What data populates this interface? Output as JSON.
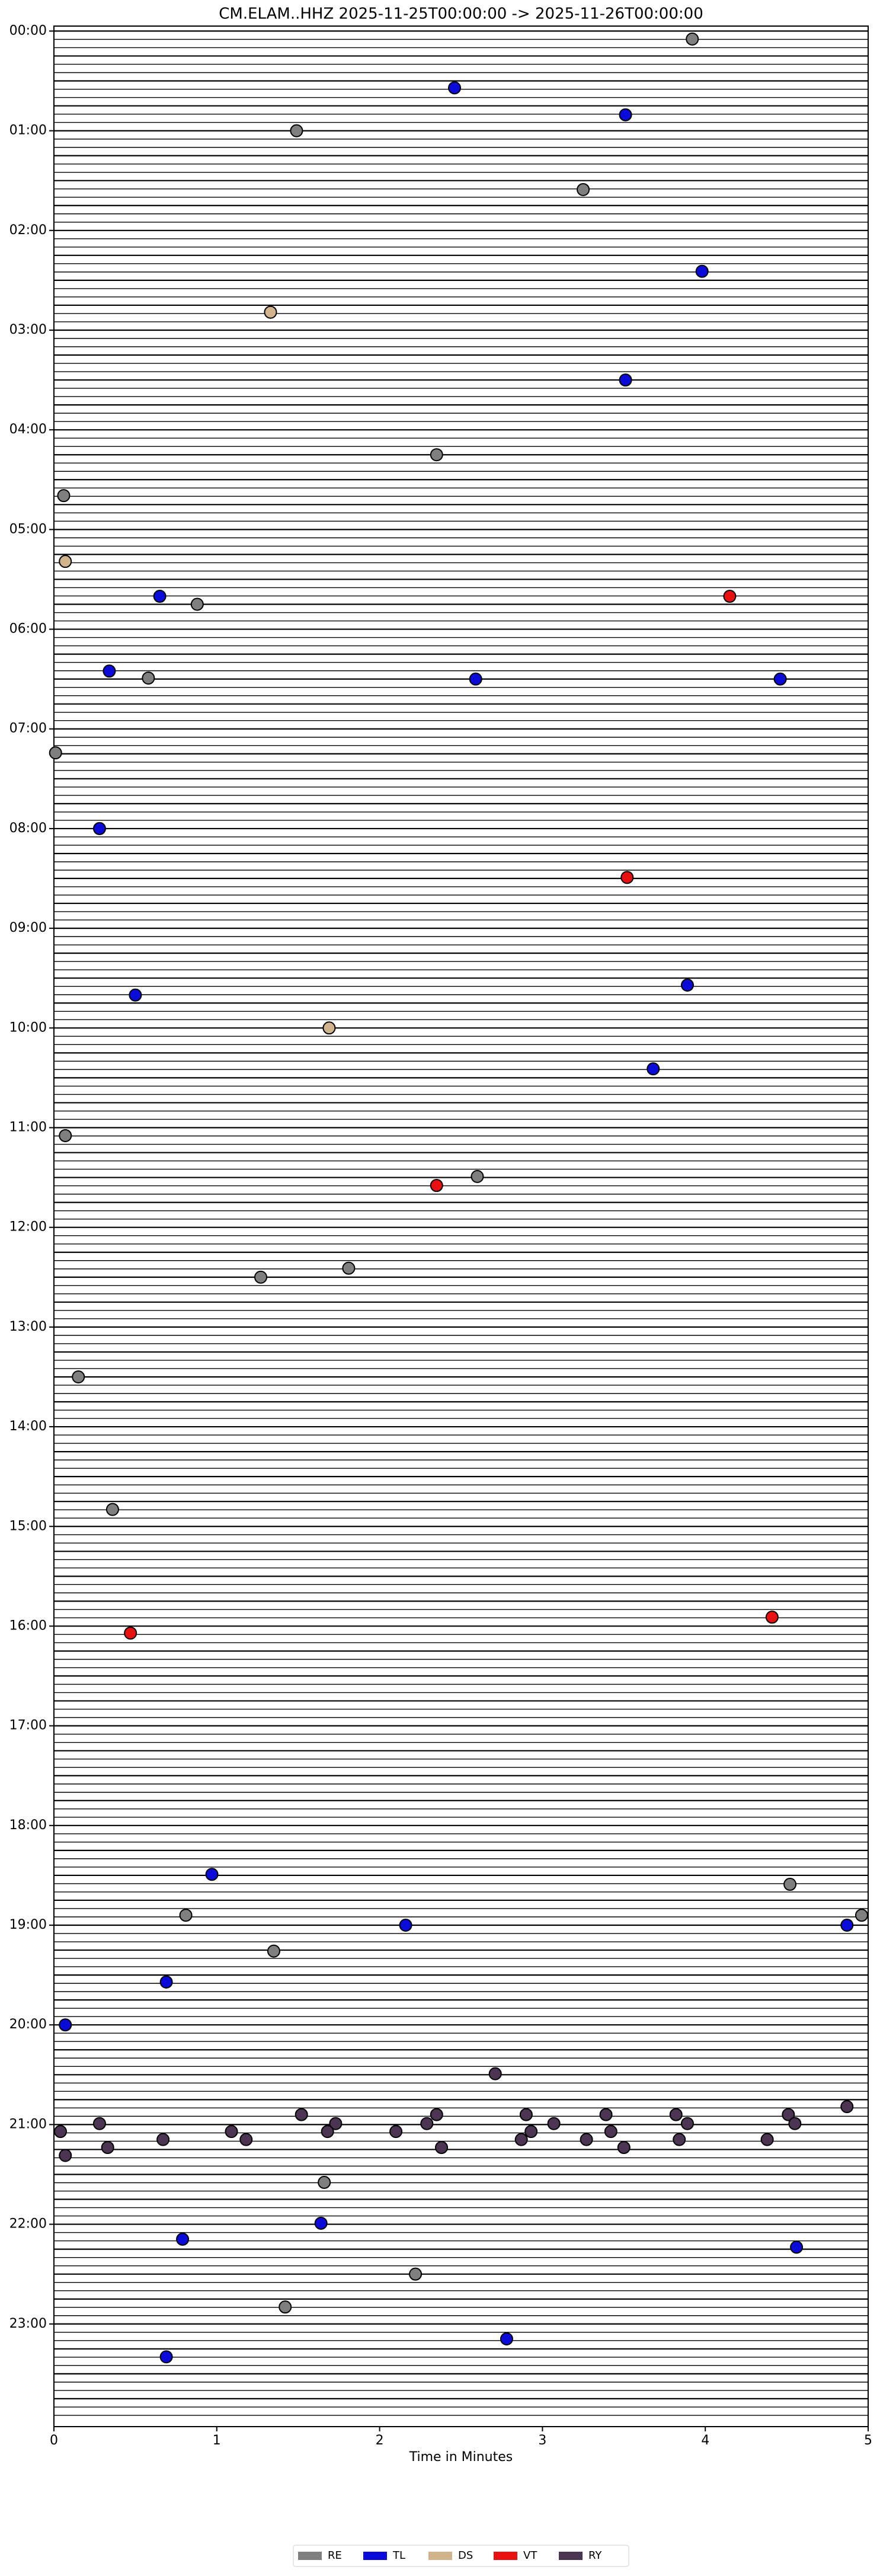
{
  "chart_data": {
    "type": "scatter",
    "title": "CM.ELAM..HHZ  2025-11-25T00:00:00 -> 2025-11-26T00:00:00",
    "xlabel": "Time in Minutes",
    "xlim": [
      0,
      5
    ],
    "xticks": [
      0,
      1,
      2,
      3,
      4,
      5
    ],
    "ylim": [
      24.03,
      -0.05
    ],
    "yticks": [
      {
        "value": 0,
        "label": "00:00"
      },
      {
        "value": 1,
        "label": "01:00"
      },
      {
        "value": 2,
        "label": "02:00"
      },
      {
        "value": 3,
        "label": "03:00"
      },
      {
        "value": 4,
        "label": "04:00"
      },
      {
        "value": 5,
        "label": "05:00"
      },
      {
        "value": 6,
        "label": "06:00"
      },
      {
        "value": 7,
        "label": "07:00"
      },
      {
        "value": 8,
        "label": "08:00"
      },
      {
        "value": 9,
        "label": "09:00"
      },
      {
        "value": 10,
        "label": "10:00"
      },
      {
        "value": 11,
        "label": "11:00"
      },
      {
        "value": 12,
        "label": "12:00"
      },
      {
        "value": 13,
        "label": "13:00"
      },
      {
        "value": 14,
        "label": "14:00"
      },
      {
        "value": 15,
        "label": "15:00"
      },
      {
        "value": 16,
        "label": "16:00"
      },
      {
        "value": 17,
        "label": "17:00"
      },
      {
        "value": 18,
        "label": "18:00"
      },
      {
        "value": 19,
        "label": "19:00"
      },
      {
        "value": 20,
        "label": "20:00"
      },
      {
        "value": 21,
        "label": "21:00"
      },
      {
        "value": 22,
        "label": "22:00"
      },
      {
        "value": 23,
        "label": "23:00"
      }
    ],
    "legend": "bottom",
    "series": [
      {
        "name": "RE",
        "color": "#7f7f7f",
        "x": [
          3.92,
          1.49,
          3.25,
          2.35,
          0.06,
          0.88,
          0.58,
          0.01,
          0.07,
          2.6,
          1.81,
          1.27,
          0.15,
          0.36,
          4.52,
          0.81,
          4.96,
          1.35,
          1.66,
          2.22,
          1.42
        ],
        "y": [
          0.08,
          1.0,
          1.59,
          4.25,
          4.66,
          5.75,
          6.49,
          7.24,
          11.08,
          11.49,
          12.41,
          12.5,
          13.5,
          14.83,
          18.59,
          18.9,
          18.9,
          19.26,
          21.58,
          22.5,
          22.83
        ]
      },
      {
        "name": "TL",
        "color": "#0b0bd9",
        "x": [
          2.46,
          3.51,
          3.98,
          3.51,
          0.65,
          0.34,
          2.59,
          4.46,
          0.28,
          0.5,
          3.89,
          3.68,
          0.97,
          2.16,
          4.87,
          0.69,
          0.07,
          1.64,
          0.79,
          4.56,
          2.78,
          0.69
        ],
        "y": [
          0.57,
          0.84,
          2.41,
          3.5,
          5.67,
          6.42,
          6.5,
          6.5,
          8.0,
          9.67,
          9.57,
          10.41,
          18.49,
          19.0,
          19.0,
          19.57,
          20.0,
          21.99,
          22.15,
          22.23,
          23.15,
          23.33
        ]
      },
      {
        "name": "DS",
        "color": "#d2b48c",
        "x": [
          1.33,
          0.07,
          1.69
        ],
        "y": [
          2.82,
          5.32,
          10.0
        ]
      },
      {
        "name": "VT",
        "color": "#e81010",
        "x": [
          3.52,
          4.15,
          2.35,
          0.47,
          4.41
        ],
        "y": [
          8.49,
          5.67,
          11.58,
          16.07,
          15.91
        ]
      },
      {
        "name": "RY",
        "color": "#4b3553",
        "x": [
          2.71,
          1.52,
          2.35,
          2.9,
          3.39,
          3.82,
          4.51,
          4.87,
          0.28,
          1.73,
          2.29,
          3.07,
          3.89,
          4.55,
          0.04,
          1.09,
          1.68,
          2.1,
          2.93,
          3.42,
          0.67,
          1.18,
          2.87,
          3.27,
          3.84,
          4.38,
          0.33,
          2.38,
          3.5,
          0.07
        ],
        "y": [
          20.49,
          20.9,
          20.9,
          20.9,
          20.9,
          20.9,
          20.9,
          20.82,
          20.99,
          20.99,
          20.99,
          20.99,
          20.99,
          20.99,
          21.07,
          21.07,
          21.07,
          21.07,
          21.07,
          21.07,
          21.15,
          21.15,
          21.15,
          21.15,
          21.15,
          21.15,
          21.23,
          21.23,
          21.23,
          21.31
        ]
      }
    ]
  }
}
